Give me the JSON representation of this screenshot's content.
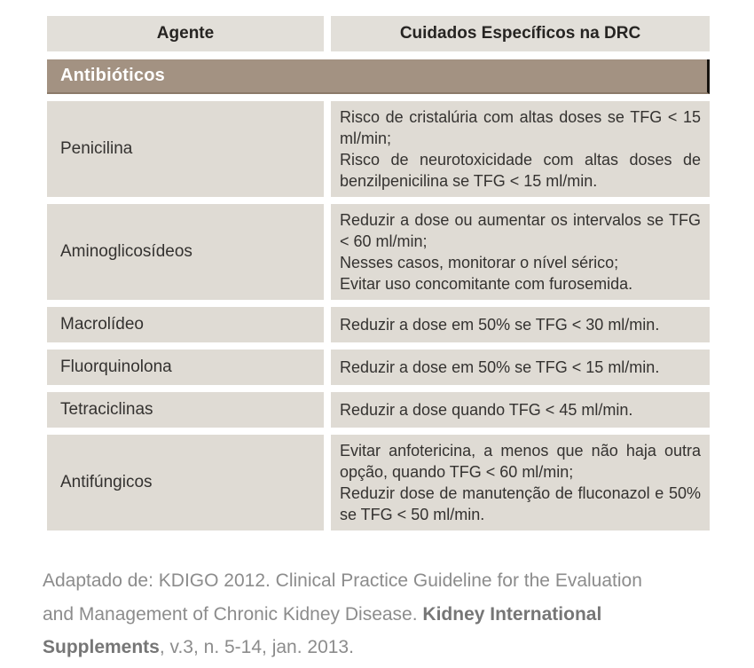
{
  "colors": {
    "header_bg": "#e2dfd9",
    "row_bg": "#dfdbd4",
    "band_bg": "#a39282",
    "band_border_bottom": "#8b7a69",
    "band_border_right": "#17130f",
    "table_text": "#343230",
    "header_text": "#262422",
    "band_text": "#ffffff",
    "footer_text": "#8c8c8c",
    "footer_bold": "#767676",
    "page_bg": "#ffffff"
  },
  "table": {
    "header": {
      "agent": "Agente",
      "care": "Cuidados Específicos na DRC"
    },
    "section": "Antibióticos",
    "rows": [
      {
        "agent": "Penicilina",
        "care": [
          "Risco de cristalúria com altas doses se TFG < 15 ml/min;",
          "Risco de neurotoxicidade com altas doses de benzilpenicilina se TFG < 15 ml/min."
        ]
      },
      {
        "agent": "Aminoglicosídeos",
        "care": [
          "Reduzir a dose ou aumentar os intervalos se TFG < 60 ml/min;",
          "Nesses casos, monitorar o nível sérico;",
          "Evitar uso concomitante com furosemida."
        ]
      },
      {
        "agent": "Macrolídeo",
        "care": [
          "Reduzir a dose em 50% se TFG < 30 ml/min."
        ]
      },
      {
        "agent": "Fluorquinolona",
        "care": [
          "Reduzir a dose em 50% se TFG < 15 ml/min."
        ]
      },
      {
        "agent": "Tetraciclinas",
        "care": [
          "Reduzir a dose quando TFG < 45 ml/min."
        ]
      },
      {
        "agent": "Antifúngicos",
        "care": [
          "Evitar anfotericina, a menos que não haja outra opção, quando TFG < 60 ml/min;",
          "Reduzir dose de manutenção de fluconazol e 50% se TFG < 50 ml/min."
        ]
      }
    ]
  },
  "footer": {
    "lines": [
      {
        "pre": "Adaptado de: KDIGO 2012. Clinical Practice Guideline for the Evaluation",
        "bold": "",
        "post": ""
      },
      {
        "pre": "and Management of Chronic Kidney Disease. ",
        "bold": "Kidney International",
        "post": ""
      },
      {
        "pre": "",
        "bold": "Supplements",
        "post": ", v.3, n. 5-14, jan. 2013."
      }
    ]
  }
}
